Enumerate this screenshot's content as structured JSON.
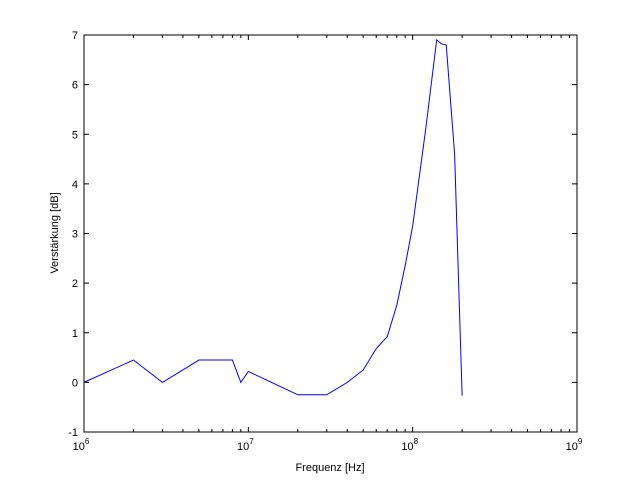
{
  "chart_data": {
    "type": "line",
    "title": "",
    "xlabel": "Frequenz [Hz]",
    "ylabel": "Verstärkung [dB]",
    "xscale": "log",
    "xlim": [
      1000000,
      1000000000
    ],
    "ylim": [
      -1,
      7
    ],
    "grid": false,
    "x_ticks": [
      {
        "value": 1000000,
        "base": "10",
        "exp": "6"
      },
      {
        "value": 10000000,
        "base": "10",
        "exp": "7"
      },
      {
        "value": 100000000,
        "base": "10",
        "exp": "8"
      },
      {
        "value": 1000000000,
        "base": "10",
        "exp": "9"
      }
    ],
    "y_ticks": [
      -1,
      0,
      1,
      2,
      3,
      4,
      5,
      6,
      7
    ],
    "colors": {
      "line": "#0000ff",
      "axes": "#000000",
      "background": "#ffffff"
    },
    "series": [
      {
        "x": [
          1000000,
          2000000,
          3000000,
          4000000,
          5000000,
          6000000,
          7000000,
          8000000,
          9000000,
          10000000,
          20000000,
          30000000,
          40000000,
          50000000,
          60000000,
          70000000,
          80000000,
          90000000,
          100000000,
          120000000,
          140000000,
          150000000,
          160000000,
          180000000,
          200000000
        ],
        "y": [
          0,
          0.45,
          0,
          0.25,
          0.45,
          0.45,
          0.45,
          0.45,
          0,
          0.22,
          -0.25,
          -0.25,
          0,
          0.25,
          0.68,
          0.92,
          1.55,
          2.35,
          3.15,
          5.1,
          6.9,
          6.82,
          6.8,
          4.6,
          -0.27
        ]
      }
    ]
  }
}
